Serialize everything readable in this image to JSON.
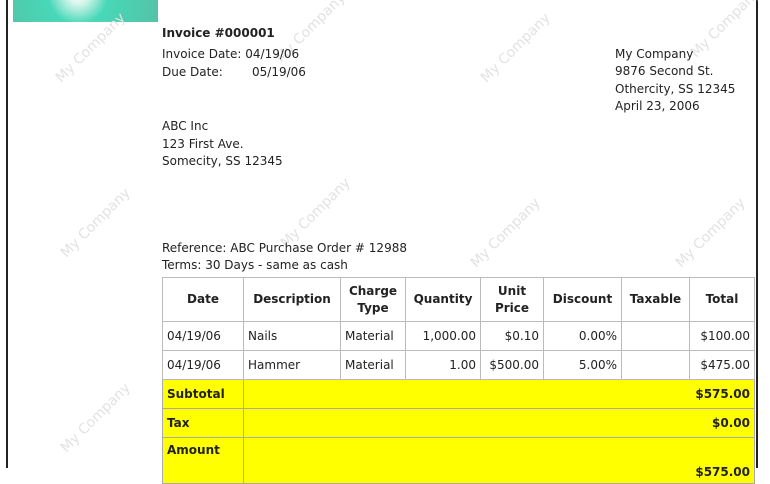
{
  "watermark": "My Company",
  "invoice": {
    "title": "Invoice #000001",
    "invoice_date": "Invoice Date: 04/19/06",
    "due_label": "Due Date:",
    "due_value": "05/19/06"
  },
  "company": {
    "name": "My Company",
    "street": "9876 Second St.",
    "city": "Othercity, SS 12345",
    "date": "April 23, 2006"
  },
  "customer": {
    "name": "ABC Inc",
    "street": "123 First Ave.",
    "city": "Somecity, SS 12345"
  },
  "reference": "Reference: ABC Purchase Order # 12988",
  "terms": "Terms: 30 Days - same as cash",
  "table": {
    "headers": [
      "Date",
      "Description",
      "Charge Type",
      "Quantity",
      "Unit Price",
      "Discount",
      "Taxable",
      "Total"
    ],
    "rows": [
      [
        "04/19/06",
        "Nails",
        "Material",
        "1,000.00",
        "$0.10",
        "0.00%",
        "",
        "$100.00"
      ],
      [
        "04/19/06",
        "Hammer",
        "Material",
        "1.00",
        "$500.00",
        "5.00%",
        "",
        "$475.00"
      ]
    ],
    "subtotal_label": "Subtotal",
    "subtotal": "$575.00",
    "tax_label": "Tax",
    "tax": "$0.00",
    "amount_label": "Amount",
    "amount": "$575.00"
  },
  "colors": {
    "highlight": "#ffff00"
  }
}
